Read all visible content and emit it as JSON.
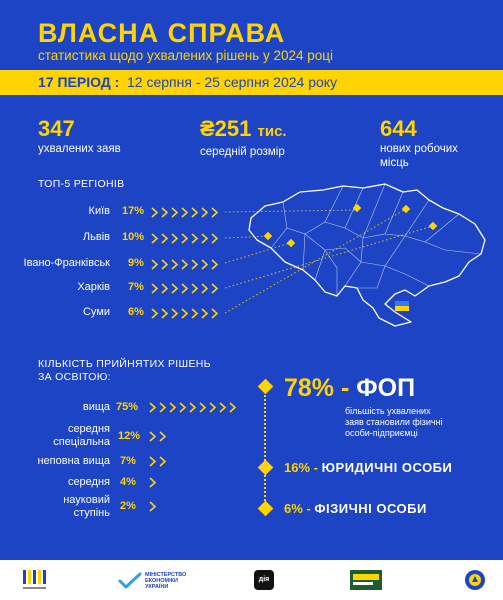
{
  "header": {
    "title": "ВЛАСНА СПРАВА",
    "subtitle": "статистика щодо ухвалених рішень у 2024 році"
  },
  "period": {
    "number": "17 ПЕРІОД :",
    "dates": "12 серпня - 25 серпня 2024 року"
  },
  "stats": [
    {
      "value": "347",
      "label": "ухвалених заяв"
    },
    {
      "value": "₴251",
      "unit": "тис.",
      "label": "середній розмір"
    },
    {
      "value": "644",
      "label_line1": "нових робочих",
      "label_line2": "місць"
    }
  ],
  "regions": {
    "title": "ТОП-5 РЕГІОНІВ",
    "items": [
      {
        "name": "Київ",
        "percent": "17%"
      },
      {
        "name": "Львів",
        "percent": "10%"
      },
      {
        "name": "Івано-Франківськ",
        "percent": "9%"
      },
      {
        "name": "Харків",
        "percent": "7%"
      },
      {
        "name": "Суми",
        "percent": "6%"
      }
    ]
  },
  "education": {
    "title_line1": "КІЛЬКІСТЬ ПРИЙНЯТИХ РІШЕНЬ",
    "title_line2": "ЗА ОСВІТОЮ:",
    "items": [
      {
        "name": "вища",
        "percent": "75%"
      },
      {
        "name_line1": "середня",
        "name_line2": "спеціальна",
        "percent": "12%"
      },
      {
        "name": "неповна вища",
        "percent": "7%"
      },
      {
        "name": "середня",
        "percent": "4%"
      },
      {
        "name_line1": "науковий",
        "name_line2": "ступінь",
        "percent": "2%"
      }
    ]
  },
  "entities": {
    "fop": {
      "percent": "78%",
      "dash": "-",
      "label": "ФОП",
      "desc_line1": "більшість ухвалених",
      "desc_line2": "заяв становили фізичні",
      "desc_line3": "особи-підприємці"
    },
    "legal": {
      "percent": "16%",
      "dash": "-",
      "label": "ЮРИДИЧНІ ОСОБИ"
    },
    "individual": {
      "percent": "6%",
      "dash": "-",
      "label": "ФІЗИЧНІ ОСОБИ"
    }
  },
  "footer": {
    "ministry_line1": "МІНІСТЕРСТВО",
    "ministry_line2": "ЕКОНОМІКИ",
    "ministry_line3": "УКРАЇНИ",
    "diia": "дія"
  },
  "colors": {
    "background": "#1d44c4",
    "accent": "#ffd400",
    "text": "#ffffff"
  }
}
